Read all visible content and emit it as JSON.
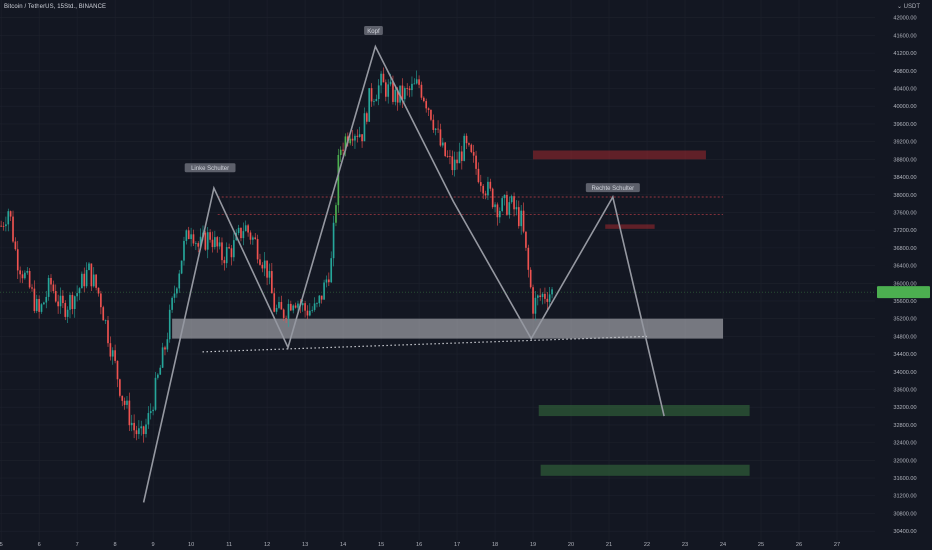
{
  "header": {
    "title": "Bitcoin / TetherUS, 15Std., BINANCE",
    "unit": "USDT"
  },
  "colors": {
    "background": "#131722",
    "up": "#26a69a",
    "up_bright": "#4caf50",
    "down": "#ef5350",
    "pattern_line": "#9598a1",
    "neckline_zone": "rgba(200,200,205,0.55)",
    "resistance_zone": "rgba(160,40,45,0.55)",
    "target_zone": "rgba(45,90,55,0.75)",
    "price_tag": "#4caf50"
  },
  "chart_data": {
    "type": "candlestick",
    "x_ticks": [
      "5",
      "6",
      "7",
      "8",
      "9",
      "10",
      "11",
      "12",
      "13",
      "14",
      "15",
      "16",
      "17",
      "18",
      "19",
      "20",
      "21",
      "22",
      "23",
      "24",
      "25",
      "26",
      "27"
    ],
    "y_ticks": [
      30400,
      30800,
      31200,
      31600,
      32000,
      32400,
      32800,
      33200,
      33600,
      34000,
      34400,
      34800,
      35200,
      35600,
      36000,
      36400,
      36800,
      37200,
      37600,
      38000,
      38400,
      38800,
      39200,
      39600,
      40000,
      40400,
      40800,
      41200,
      41600,
      42000
    ],
    "y_tick_labels": [
      "30400.00",
      "30800.00",
      "31200.00",
      "31600.00",
      "32000.00",
      "32400.00",
      "32800.00",
      "33200.00",
      "33600.00",
      "34000.00",
      "34400.00",
      "34800.00",
      "35200.00",
      "35600.00",
      "36000.00",
      "36400.00",
      "36800.00",
      "37200.00",
      "37600.00",
      "38000.00",
      "38400.00",
      "38800.00",
      "39200.00",
      "39600.00",
      "40000.00",
      "40400.00",
      "40800.00",
      "41200.00",
      "41600.00",
      "42000.00"
    ],
    "ylim": [
      30200,
      42400
    ],
    "xlim": [
      4.97,
      28
    ],
    "close_anchors": [
      [
        5.0,
        37300
      ],
      [
        5.2,
        37700
      ],
      [
        5.4,
        36600
      ],
      [
        5.7,
        36000
      ],
      [
        6.0,
        35300
      ],
      [
        6.3,
        36000
      ],
      [
        6.6,
        35400
      ],
      [
        7.0,
        35800
      ],
      [
        7.3,
        36300
      ],
      [
        7.6,
        35700
      ],
      [
        7.9,
        34500
      ],
      [
        8.2,
        33400
      ],
      [
        8.5,
        32700
      ],
      [
        8.7,
        32500
      ],
      [
        8.9,
        33000
      ],
      [
        9.3,
        34500
      ],
      [
        9.6,
        36000
      ],
      [
        9.8,
        36800
      ],
      [
        10.0,
        37300
      ],
      [
        10.2,
        36800
      ],
      [
        10.5,
        37100
      ],
      [
        10.8,
        36600
      ],
      [
        11.1,
        36800
      ],
      [
        11.4,
        37300
      ],
      [
        11.7,
        36900
      ],
      [
        12.0,
        36300
      ],
      [
        12.2,
        35400
      ],
      [
        12.4,
        35300
      ],
      [
        12.7,
        35700
      ],
      [
        13.0,
        35400
      ],
      [
        13.3,
        35400
      ],
      [
        13.5,
        35900
      ],
      [
        13.7,
        36500
      ],
      [
        13.9,
        39000
      ],
      [
        14.2,
        39500
      ],
      [
        14.5,
        39400
      ],
      [
        14.7,
        40200
      ],
      [
        15.0,
        40500
      ],
      [
        15.4,
        40200
      ],
      [
        15.7,
        40300
      ],
      [
        16.0,
        40500
      ],
      [
        16.3,
        39900
      ],
      [
        16.6,
        39000
      ],
      [
        16.9,
        38600
      ],
      [
        17.2,
        39100
      ],
      [
        17.5,
        38600
      ],
      [
        17.8,
        38100
      ],
      [
        18.1,
        37700
      ],
      [
        18.4,
        37800
      ],
      [
        18.7,
        37400
      ],
      [
        18.9,
        36100
      ],
      [
        19.0,
        35500
      ],
      [
        19.2,
        35700
      ],
      [
        19.4,
        35800
      ],
      [
        19.55,
        35800
      ]
    ],
    "current_price": 35800,
    "pattern_path": [
      [
        8.75,
        31050
      ],
      [
        10.6,
        38150
      ],
      [
        12.55,
        34550
      ],
      [
        14.85,
        41350
      ],
      [
        16.9,
        37850
      ],
      [
        18.95,
        34750
      ],
      [
        21.1,
        37950
      ],
      [
        22.45,
        33000
      ]
    ],
    "neckline": {
      "from": [
        10.3,
        34450
      ],
      "to": [
        22.0,
        34800
      ]
    },
    "zones": [
      {
        "name": "resistance-zone",
        "x1": 19.0,
        "x2": 23.55,
        "y1": 38800,
        "y2": 39000,
        "color": "resistance"
      },
      {
        "name": "resistance-small-zone",
        "x1": 20.9,
        "x2": 22.2,
        "y1": 37230,
        "y2": 37330,
        "color": "resistance"
      },
      {
        "name": "neckline-zone",
        "x1": 9.5,
        "x2": 24.0,
        "y1": 34750,
        "y2": 35200,
        "color": "neckline"
      },
      {
        "name": "target-zone-1",
        "x1": 19.15,
        "x2": 24.7,
        "y1": 33000,
        "y2": 33250,
        "color": "target"
      },
      {
        "name": "target-zone-2",
        "x1": 19.2,
        "x2": 24.7,
        "y1": 31650,
        "y2": 31900,
        "color": "target"
      }
    ],
    "dashed_levels": [
      {
        "x1": 10.7,
        "x2": 24.0,
        "y": 37950
      },
      {
        "x1": 10.7,
        "x2": 24.0,
        "y": 37550
      }
    ],
    "annotations": [
      {
        "text": "Linke Schulter",
        "x": 10.5,
        "y": 38600
      },
      {
        "text": "Kopf",
        "x": 14.8,
        "y": 41700
      },
      {
        "text": "Rechte Schulter",
        "x": 21.1,
        "y": 38150
      }
    ]
  }
}
